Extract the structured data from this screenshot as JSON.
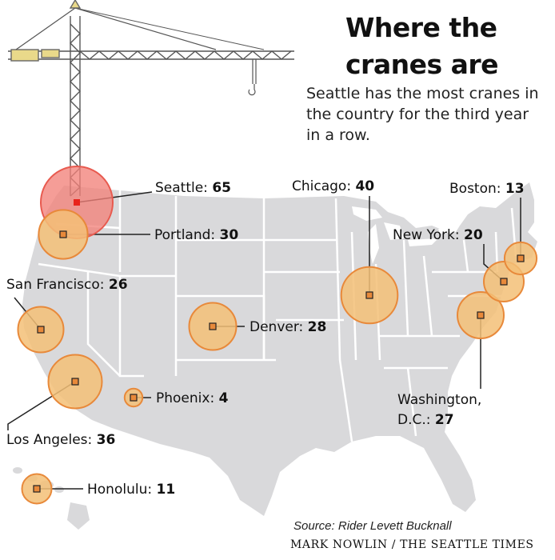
{
  "title_line1": "Where the",
  "title_line2": "cranes are",
  "subtitle": "Seattle has the most cranes in the country for the third year in a row.",
  "source": "Source: Rider Levett Bucknall",
  "credit": "MARK NOWLIN / THE SEATTLE TIMES",
  "colors": {
    "land": "#d9d9db",
    "state_border": "#ffffff",
    "bubble_fill": "#f3c077",
    "bubble_stroke": "#e8893a",
    "marker_fill": "#e8893a",
    "seattle_fill": "#f2827a",
    "seattle_stroke": "#e85a4f",
    "seattle_marker": "#e8231c"
  },
  "cities": [
    {
      "id": "seattle",
      "name": "Seattle:",
      "count": 65,
      "highlight": true
    },
    {
      "id": "portland",
      "name": "Portland:",
      "count": 30
    },
    {
      "id": "san-francisco",
      "name": "San Francisco:",
      "count": 26
    },
    {
      "id": "los-angeles",
      "name": "Los Angeles:",
      "count": 36
    },
    {
      "id": "phoenix",
      "name": "Phoenix:",
      "count": 4
    },
    {
      "id": "denver",
      "name": "Denver:",
      "count": 28
    },
    {
      "id": "chicago",
      "name": "Chicago:",
      "count": 40
    },
    {
      "id": "boston",
      "name": "Boston:",
      "count": 13
    },
    {
      "id": "new-york",
      "name": "New York:",
      "count": 20
    },
    {
      "id": "washington",
      "name": "Washington,",
      "name2": "D.C.:",
      "count": 27
    },
    {
      "id": "honolulu",
      "name": "Honolulu:",
      "count": 11
    }
  ]
}
